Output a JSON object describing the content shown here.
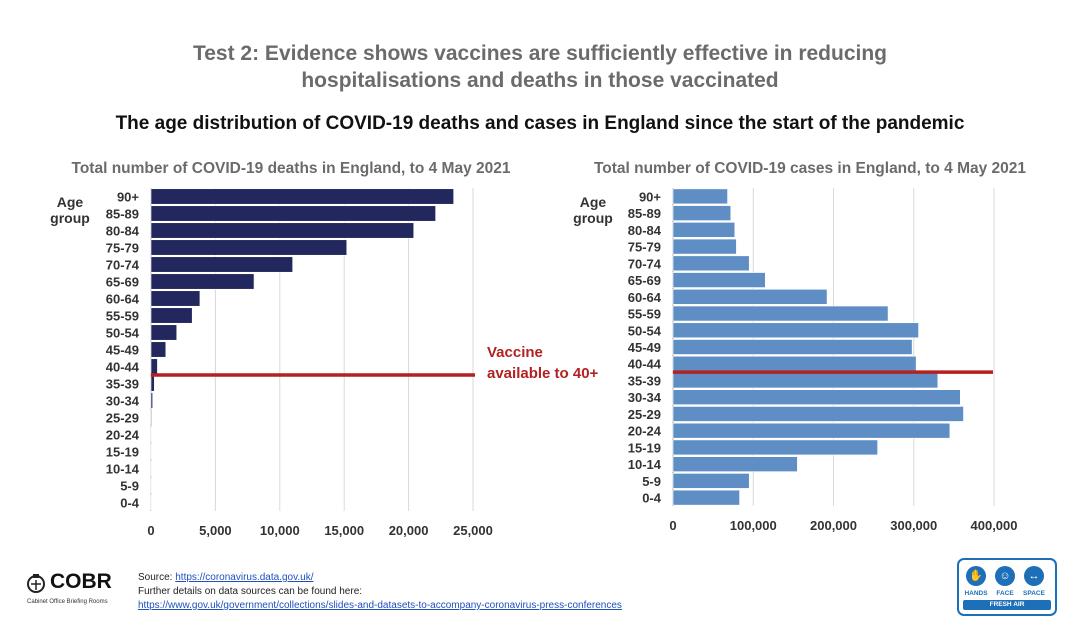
{
  "slide": {
    "title_line1": "Test 2: Evidence shows vaccines are sufficiently effective in reducing",
    "title_line2": "hospitalisations and deaths in those vaccinated",
    "subtitle": "The age distribution of COVID-19 deaths and cases in England since the start of the pandemic"
  },
  "annotation": {
    "line1": "Vaccine",
    "line2": "available to 40+",
    "color": "#b22222"
  },
  "colors": {
    "deaths_bar": "#22275e",
    "cases_bar": "#5e8ec4",
    "axis_text": "#333333",
    "grid": "#d9d9d9"
  },
  "chart_data": [
    {
      "type": "bar",
      "orientation": "horizontal",
      "title": "Total number of COVID-19 deaths in England, to 4 May 2021",
      "ylabel_line1": "Age",
      "ylabel_line2": "group",
      "categories": [
        "90+",
        "85-89",
        "80-84",
        "75-79",
        "70-74",
        "65-69",
        "60-64",
        "55-59",
        "50-54",
        "45-49",
        "40-44",
        "35-39",
        "30-34",
        "25-29",
        "20-24",
        "15-19",
        "10-14",
        "5-9",
        "0-4"
      ],
      "values": [
        23500,
        22100,
        20400,
        15200,
        11000,
        8000,
        3800,
        3200,
        2000,
        1150,
        500,
        260,
        130,
        60,
        30,
        15,
        8,
        6,
        5
      ],
      "xlim": [
        0,
        25000
      ],
      "xticks": [
        0,
        5000,
        10000,
        15000,
        20000,
        25000
      ],
      "xtick_labels": [
        "0",
        "5,000",
        "10,000",
        "15,000",
        "20,000",
        "25,000"
      ],
      "marker_between": [
        "40-44",
        "35-39"
      ]
    },
    {
      "type": "bar",
      "orientation": "horizontal",
      "title": "Total number of COVID-19 cases in England, to 4 May 2021",
      "ylabel_line1": "Age",
      "ylabel_line2": "group",
      "categories": [
        "90+",
        "85-89",
        "80-84",
        "75-79",
        "70-74",
        "65-69",
        "60-64",
        "55-59",
        "50-54",
        "45-49",
        "40-44",
        "35-39",
        "30-34",
        "25-29",
        "20-24",
        "15-19",
        "10-14",
        "5-9",
        "0-4"
      ],
      "values": [
        68000,
        72000,
        77000,
        79000,
        95000,
        115000,
        192000,
        268000,
        306000,
        298000,
        303000,
        330000,
        358000,
        362000,
        345000,
        255000,
        155000,
        95000,
        83000
      ],
      "xlim": [
        0,
        400000
      ],
      "xticks": [
        0,
        100000,
        200000,
        300000,
        400000
      ],
      "xtick_labels": [
        "0",
        "100,000",
        "200,000",
        "300,000",
        "400,000"
      ],
      "marker_between": [
        "40-44",
        "35-39"
      ]
    }
  ],
  "footer": {
    "source_prefix": "Source: ",
    "source_link": "https://coronavirus.data.gov.uk/",
    "details_text": "Further details on data sources can be found here:",
    "details_link": "https://www.gov.uk/government/collections/slides-and-datasets-to-accompany-coronavirus-press-conferences",
    "logo_text": "COBR",
    "logo_subtext": "Cabinet Office Briefing Rooms",
    "badge": {
      "hands": "HANDS",
      "face": "FACE",
      "space": "SPACE",
      "fresh_air": "FRESH AIR"
    }
  }
}
